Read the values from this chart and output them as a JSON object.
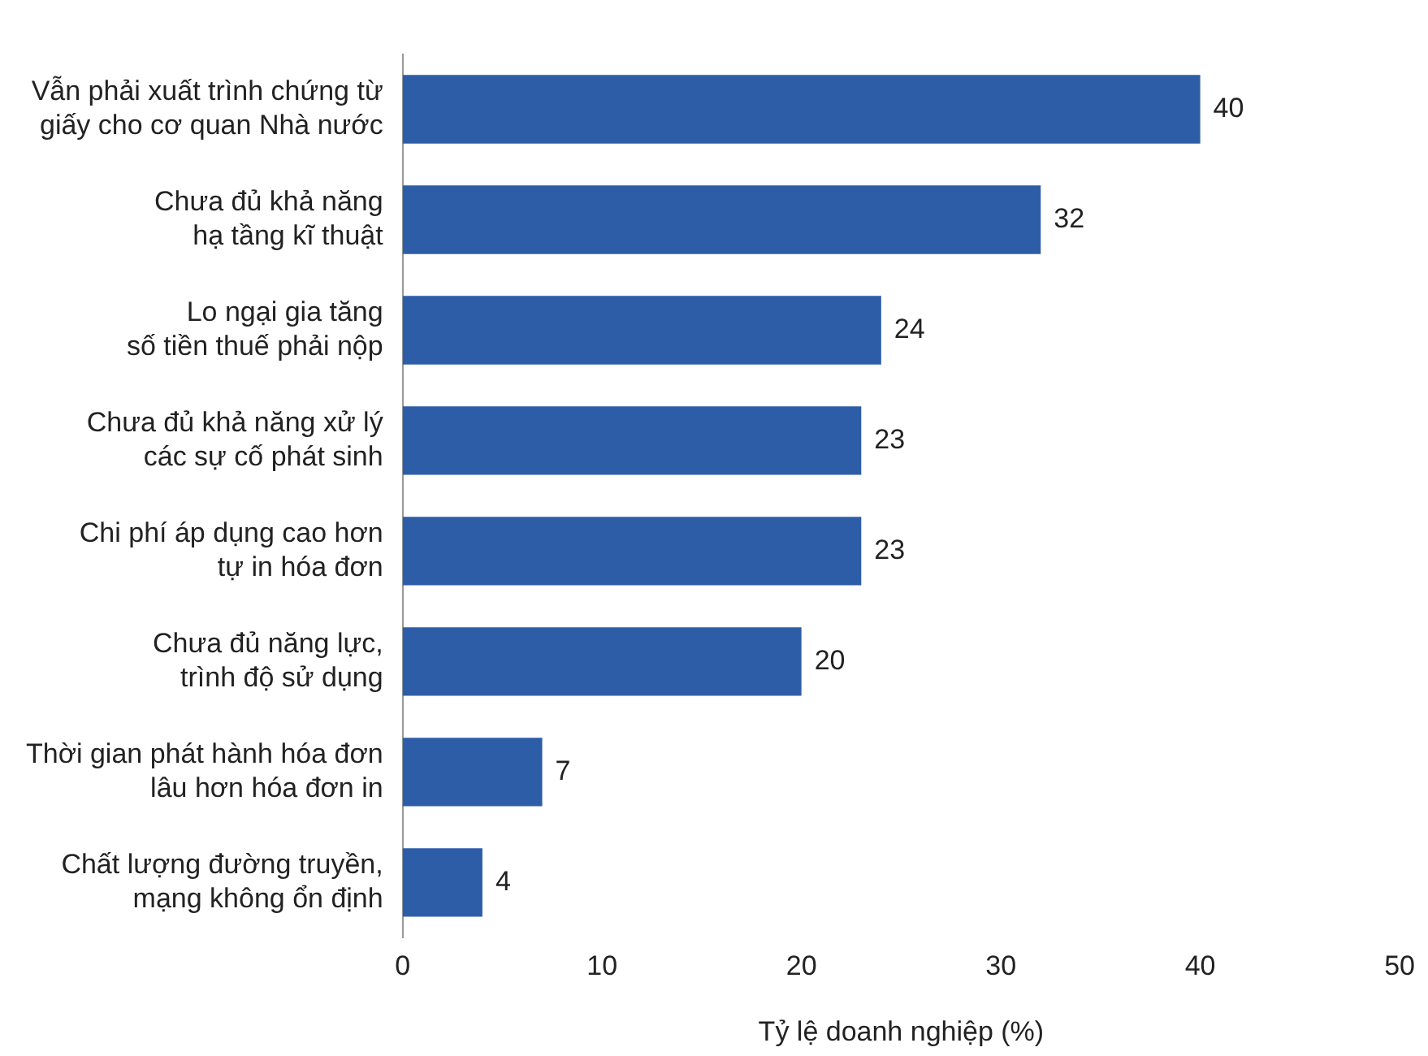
{
  "chart_data": {
    "type": "bar",
    "orientation": "horizontal",
    "xlabel": "Tỷ lệ doanh nghiệp (%)",
    "categories": [
      "Vẫn phải xuất trình chứng từ\ngiấy cho cơ quan Nhà nước",
      "Chưa đủ khả năng\nhạ tầng kĩ thuật",
      "Lo ngại gia tăng\nsố tiền thuế phải nộp",
      "Chưa đủ khả năng xử lý\ncác sự cố phát sinh",
      "Chi phí áp dụng cao hơn\ntự in hóa đơn",
      "Chưa đủ năng lực,\ntrình độ sử dụng",
      "Thời gian phát hành hóa đơn\nlâu hơn hóa đơn in",
      "Chất lượng đường truyền,\nmạng không ổn định"
    ],
    "values": [
      40,
      32,
      24,
      23,
      23,
      20,
      7,
      4
    ],
    "color": "#2e5da8",
    "xlim": [
      0,
      50
    ],
    "xticks": [
      0,
      10,
      20,
      30,
      40,
      50
    ],
    "data_labels": true,
    "grid": false,
    "legend": false
  }
}
